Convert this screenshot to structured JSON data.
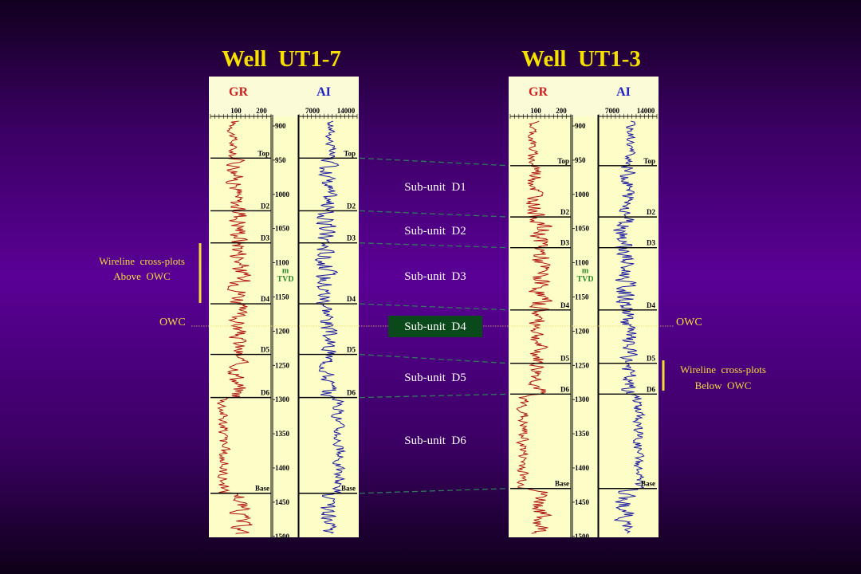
{
  "wells": [
    {
      "title": "Well  UT1-7",
      "track_labels": {
        "gr": "GR",
        "ai": "AI"
      },
      "gr_scale": [
        "100",
        "200"
      ],
      "ai_scale": [
        "7000",
        "14000"
      ],
      "depth_unit": "m",
      "depth_ref": "TVD",
      "depths": [
        "900",
        "950",
        "1000",
        "1050",
        "1100",
        "1150",
        "1200",
        "1250",
        "1300",
        "1350",
        "1400",
        "1450",
        "1500"
      ],
      "markers": [
        {
          "label": "Top",
          "depth": 947
        },
        {
          "label": "D2",
          "depth": 1024
        },
        {
          "label": "D3",
          "depth": 1071
        },
        {
          "label": "D4",
          "depth": 1160
        },
        {
          "label": "D5",
          "depth": 1234
        },
        {
          "label": "D6",
          "depth": 1297
        },
        {
          "label": "Base",
          "depth": 1437
        }
      ]
    },
    {
      "title": "Well  UT1-3",
      "track_labels": {
        "gr": "GR",
        "ai": "AI"
      },
      "gr_scale": [
        "100",
        "200"
      ],
      "ai_scale": [
        "7000",
        "14000"
      ],
      "depth_unit": "m",
      "depth_ref": "TVD",
      "depths": [
        "900",
        "950",
        "1000",
        "1050",
        "1100",
        "1150",
        "1200",
        "1250",
        "1300",
        "1350",
        "1400",
        "1450",
        "1500"
      ],
      "markers": [
        {
          "label": "Top",
          "depth": 958
        },
        {
          "label": "D2",
          "depth": 1033
        },
        {
          "label": "D3",
          "depth": 1078
        },
        {
          "label": "D4",
          "depth": 1169
        },
        {
          "label": "D5",
          "depth": 1247
        },
        {
          "label": "D6",
          "depth": 1292
        },
        {
          "label": "Base",
          "depth": 1430
        }
      ]
    }
  ],
  "subunits": [
    "Sub-unit  D1",
    "Sub-unit  D2",
    "Sub-unit  D3",
    "Sub-unit  D4",
    "Sub-unit  D5",
    "Sub-unit  D6"
  ],
  "highlighted_subunit": "Sub-unit  D4",
  "owc_label": "OWC",
  "crossplot_above": {
    "line1": "Wireline  cross-plots",
    "line2": "Above  OWC"
  },
  "crossplot_below": {
    "line1": "Wireline  cross-plots",
    "line2": "Below  OWC"
  },
  "colors": {
    "gr_curve": "#b01515",
    "ai_curve": "#1a1aa0",
    "panel": "#fdfdc8",
    "title": "#f5e000",
    "gr_label": "#d02020",
    "ai_label": "#2020c8",
    "annotation": "#f2dc3a",
    "correlation": "#2e7a5a",
    "highlight_box": "#0a4a1a"
  }
}
